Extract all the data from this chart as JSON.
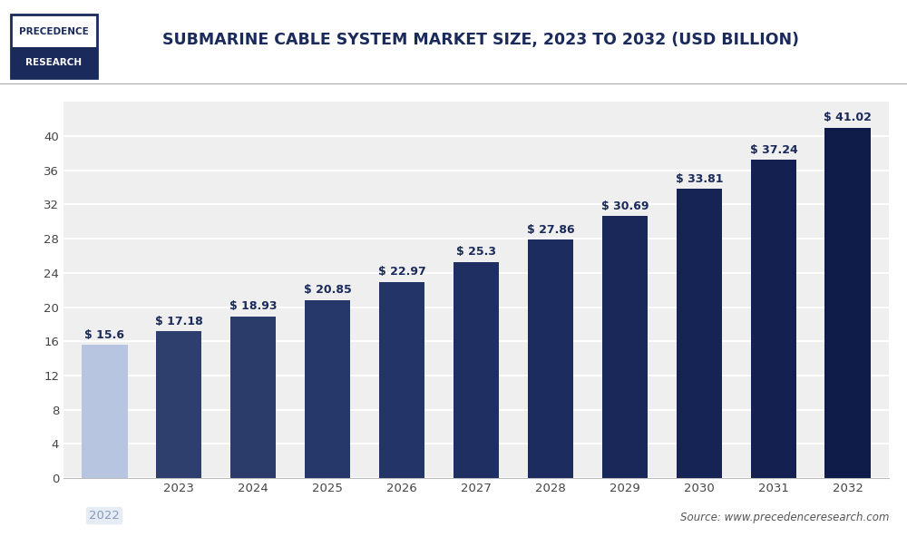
{
  "title": "SUBMARINE CABLE SYSTEM MARKET SIZE, 2023 TO 2032 (USD BILLION)",
  "categories": [
    "2022",
    "2023",
    "2024",
    "2025",
    "2026",
    "2027",
    "2028",
    "2029",
    "2030",
    "2031",
    "2032"
  ],
  "values": [
    15.6,
    17.18,
    18.93,
    20.85,
    22.97,
    25.3,
    27.86,
    30.69,
    33.81,
    37.24,
    41.02
  ],
  "labels": [
    "$ 15.6",
    "$ 17.18",
    "$ 18.93",
    "$ 20.85",
    "$ 22.97",
    "$ 25.3",
    "$ 27.86",
    "$ 30.69",
    "$ 33.81",
    "$ 37.24",
    "$ 41.02"
  ],
  "bar_colors": [
    "#b8c5e0",
    "#2e3f6e",
    "#2b3c6b",
    "#263769",
    "#233468",
    "#1f2f62",
    "#1c2c5e",
    "#192859",
    "#162455",
    "#132050",
    "#0f1c4a"
  ],
  "bar_label_color": "#1a2a5a",
  "ylim": [
    0,
    44
  ],
  "yticks": [
    0,
    4,
    8,
    12,
    16,
    20,
    24,
    28,
    32,
    36,
    40
  ],
  "background_color": "#ffffff",
  "plot_bg_color": "#efefef",
  "grid_color": "#ffffff",
  "title_color": "#1a2a5a",
  "source_text": "Source: www.precedenceresearch.com",
  "title_fontsize": 12.5,
  "bar_label_fontsize": 9,
  "axis_tick_fontsize": 9.5
}
